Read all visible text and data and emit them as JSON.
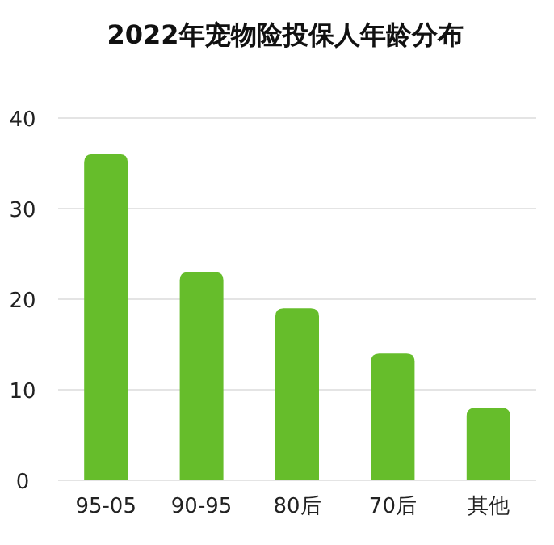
{
  "chart_data": {
    "type": "bar",
    "title": "2022年宠物险投保人年龄分布",
    "categories": [
      "95-05",
      "90-95",
      "80后",
      "70后",
      "其他"
    ],
    "values": [
      36,
      23,
      19,
      14,
      8
    ],
    "color": "#66bd2b",
    "ylim": [
      0,
      40
    ],
    "yticks": [
      0,
      10,
      20,
      30,
      40
    ],
    "grid": "y"
  }
}
